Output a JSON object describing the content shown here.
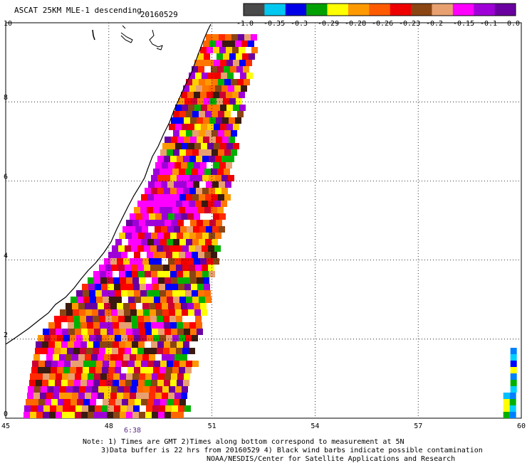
{
  "title": {
    "product": "ASCAT 25KM MLE-1 descending",
    "date": "20160529"
  },
  "colorbar": {
    "colors": [
      "#4a4a4a",
      "#00c8f0",
      "#0000e8",
      "#00a000",
      "#ffff00",
      "#ff9900",
      "#ff5a00",
      "#ee0000",
      "#8b4513",
      "#e8a070",
      "#ff00ff",
      "#a000d8",
      "#6a00a0"
    ],
    "labels": [
      "-1.0",
      "-0.35",
      "-0.3",
      "-0.29",
      "-0.28",
      "-0.26",
      "-0.23",
      "-0.2",
      "-0.15",
      "-0.1",
      "0.0"
    ]
  },
  "axes": {
    "x_ticks": [
      "45",
      "48",
      "51",
      "54",
      "57",
      "60"
    ],
    "y_ticks": [
      "0",
      "2",
      "4",
      "6",
      "8",
      "10"
    ]
  },
  "time_label": "6:38",
  "notes": {
    "line1": "Note: 1) Times are GMT 2)Times along bottom correspond to measurement at 5N",
    "line2": "3)Data buffer is 22 hrs from 20160529 4) Black wind barbs indicate possible contamination",
    "line3": "NOAA/NESDIS/Center for Satellite Applications and Research"
  },
  "swath": {
    "lon_range": [
      45,
      60
    ],
    "lat_range": [
      0,
      10
    ],
    "main_left_edge": [
      [
        0,
        45.5
      ],
      [
        2,
        45.9
      ],
      [
        4,
        47.9
      ],
      [
        6,
        49.2
      ],
      [
        8,
        50.0
      ],
      [
        10,
        51.0
      ]
    ],
    "main_right_edge": [
      [
        0,
        50.3
      ],
      [
        2,
        50.7
      ],
      [
        4,
        51.2
      ],
      [
        6,
        51.6
      ],
      [
        8,
        52.0
      ],
      [
        10,
        52.5
      ]
    ],
    "east_strip": {
      "lon": [
        59.6,
        60.0
      ],
      "lat": [
        0,
        1.9
      ]
    }
  }
}
